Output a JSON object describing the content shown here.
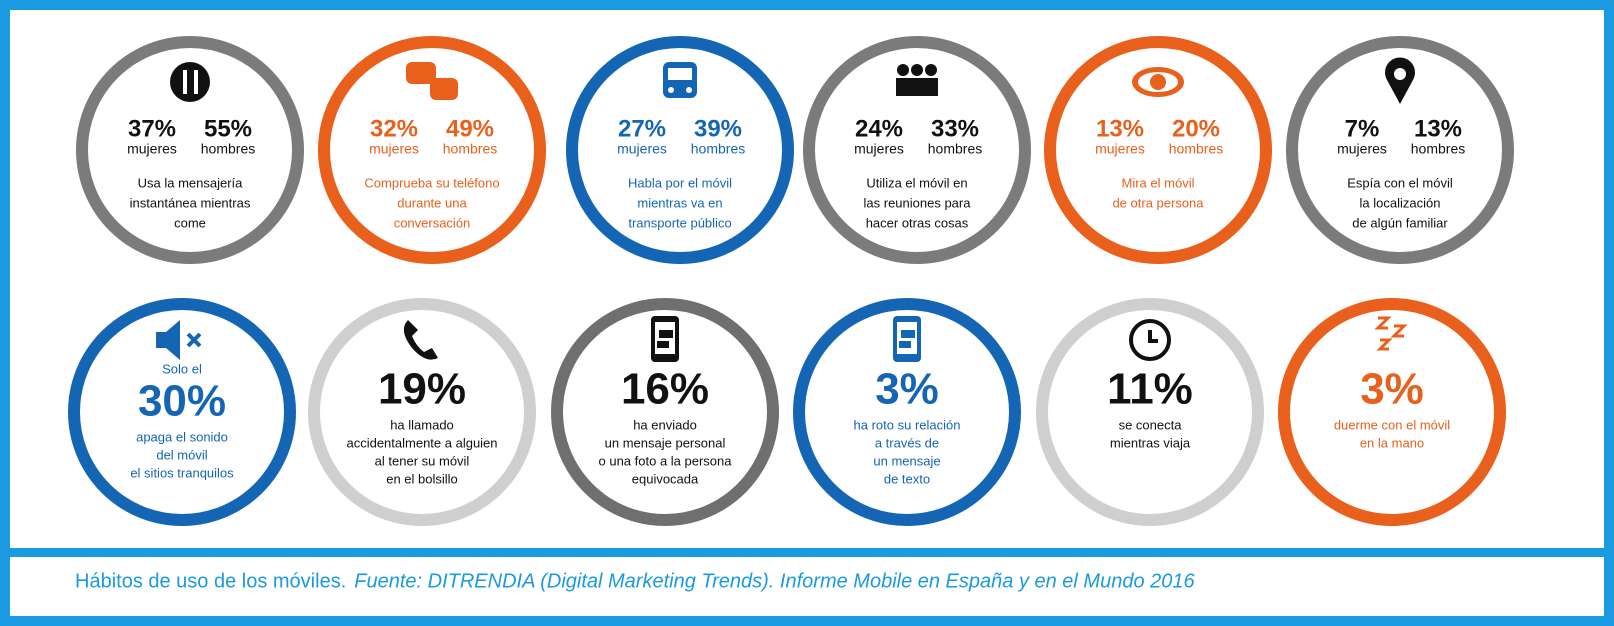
{
  "top_row": [
    {
      "ring": "#7b7b7b",
      "color": "#111111",
      "stats": [
        {
          "value": "37%",
          "label": "mujeres"
        },
        {
          "value": "55%",
          "label": "hombres"
        }
      ],
      "description": [
        "Usa la mensajería",
        "instantánea mientras",
        "come"
      ]
    },
    {
      "ring": "#e8601c",
      "color": "#e8601c",
      "stats": [
        {
          "value": "32%",
          "label": "mujeres"
        },
        {
          "value": "49%",
          "label": "hombres"
        }
      ],
      "description": [
        "Comprueba su teléfono",
        "durante una",
        "conversación"
      ]
    },
    {
      "ring": "#1565b5",
      "color": "#1565b5",
      "stats": [
        {
          "value": "27%",
          "label": "mujeres"
        },
        {
          "value": "39%",
          "label": "hombres"
        }
      ],
      "description": [
        "Habla por el móvil",
        "mientras va en",
        "transporte público"
      ]
    },
    {
      "ring": "#7b7b7b",
      "color": "#111111",
      "stats": [
        {
          "value": "24%",
          "label": "mujeres"
        },
        {
          "value": "33%",
          "label": "hombres"
        }
      ],
      "description": [
        "Utiliza el móvil en",
        "las reuniones para",
        "hacer otras cosas"
      ]
    },
    {
      "ring": "#e8601c",
      "color": "#e8601c",
      "stats": [
        {
          "value": "13%",
          "label": "mujeres"
        },
        {
          "value": "20%",
          "label": "hombres"
        }
      ],
      "description": [
        "Mira el móvil",
        "de otra persona"
      ]
    },
    {
      "ring": "#7b7b7b",
      "color": "#111111",
      "stats": [
        {
          "value": "7%",
          "label": "mujeres"
        },
        {
          "value": "13%",
          "label": "hombres"
        }
      ],
      "description": [
        "Espía con el móvil",
        "la localización",
        "de algún familiar"
      ]
    }
  ],
  "bottom_row": [
    {
      "ring": "#1565b5",
      "color": "#1565b5",
      "intro": "Solo el",
      "value": "30%",
      "description": [
        "apaga el sonido",
        "del móvil",
        "el sitios tranquilos"
      ]
    },
    {
      "ring": "#cfcfcf",
      "color": "#111111",
      "value": "19%",
      "description": [
        "ha llamado",
        "accidentalmente a alguien",
        "al tener su móvil",
        "en el bolsillo"
      ]
    },
    {
      "ring": "#6f6f6f",
      "color": "#111111",
      "value": "16%",
      "description": [
        "ha enviado",
        "un mensaje personal",
        "o una foto a la persona",
        "equivocada"
      ]
    },
    {
      "ring": "#1565b5",
      "color": "#1565b5",
      "value": "3%",
      "description": [
        "ha roto su relación",
        "a través de",
        "un mensaje",
        "de texto"
      ]
    },
    {
      "ring": "#cfcfcf",
      "color": "#111111",
      "value": "11%",
      "description": [
        "se conecta",
        "mientras viaja"
      ]
    },
    {
      "ring": "#e8601c",
      "color": "#e8601c",
      "value": "3%",
      "description": [
        "duerme con el móvil",
        "en la mano"
      ]
    }
  ],
  "caption": {
    "title": "Hábitos de uso de los móviles.",
    "source": "Fuente: DITRENDIA (Digital Marketing Trends).  Informe Mobile en España y en el Mundo 2016"
  }
}
